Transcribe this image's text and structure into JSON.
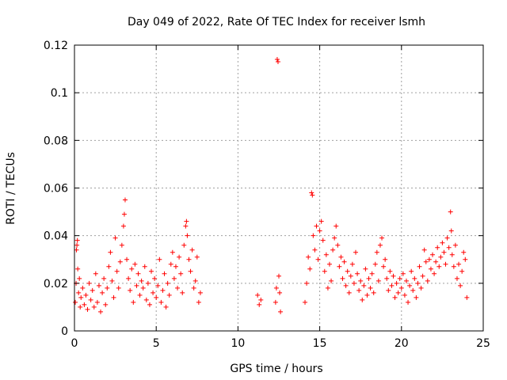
{
  "chart_data": {
    "type": "scatter",
    "title": "Day 049 of 2022, Rate Of TEC Index for receiver lsmh",
    "xlabel": "GPS time / hours",
    "ylabel": "ROTI / TECUs",
    "xlim": [
      0,
      25
    ],
    "ylim": [
      0,
      0.12
    ],
    "xticks": [
      0,
      5,
      10,
      15,
      20,
      25
    ],
    "xtick_labels": [
      "0",
      "5",
      "10",
      "15",
      "20",
      "25"
    ],
    "yticks": [
      0,
      0.02,
      0.04,
      0.06,
      0.08,
      0.1,
      0.12
    ],
    "ytick_labels": [
      "0",
      "0.02",
      "0.04",
      "0.06",
      "0.08",
      "0.1",
      "0.12"
    ],
    "grid": true,
    "marker": "+",
    "series": [
      {
        "name": "ROTI",
        "color": "#ff0000",
        "points": [
          [
            0.05,
            0.012
          ],
          [
            0.1,
            0.02
          ],
          [
            0.12,
            0.034
          ],
          [
            0.15,
            0.036
          ],
          [
            0.18,
            0.038
          ],
          [
            0.2,
            0.026
          ],
          [
            0.25,
            0.016
          ],
          [
            0.3,
            0.022
          ],
          [
            0.35,
            0.01
          ],
          [
            0.4,
            0.014
          ],
          [
            0.5,
            0.018
          ],
          [
            0.6,
            0.011
          ],
          [
            0.7,
            0.015
          ],
          [
            0.8,
            0.009
          ],
          [
            0.9,
            0.02
          ],
          [
            1.0,
            0.013
          ],
          [
            1.1,
            0.017
          ],
          [
            1.2,
            0.01
          ],
          [
            1.3,
            0.024
          ],
          [
            1.4,
            0.012
          ],
          [
            1.5,
            0.019
          ],
          [
            1.6,
            0.008
          ],
          [
            1.7,
            0.016
          ],
          [
            1.8,
            0.022
          ],
          [
            1.9,
            0.011
          ],
          [
            2.0,
            0.018
          ],
          [
            2.1,
            0.027
          ],
          [
            2.2,
            0.033
          ],
          [
            2.3,
            0.021
          ],
          [
            2.4,
            0.014
          ],
          [
            2.5,
            0.039
          ],
          [
            2.6,
            0.025
          ],
          [
            2.7,
            0.018
          ],
          [
            2.8,
            0.029
          ],
          [
            2.9,
            0.036
          ],
          [
            3.0,
            0.044
          ],
          [
            3.05,
            0.049
          ],
          [
            3.1,
            0.055
          ],
          [
            3.2,
            0.03
          ],
          [
            3.3,
            0.022
          ],
          [
            3.4,
            0.017
          ],
          [
            3.5,
            0.026
          ],
          [
            3.6,
            0.012
          ],
          [
            3.7,
            0.028
          ],
          [
            3.8,
            0.019
          ],
          [
            3.9,
            0.024
          ],
          [
            4.0,
            0.015
          ],
          [
            4.1,
            0.021
          ],
          [
            4.2,
            0.018
          ],
          [
            4.3,
            0.027
          ],
          [
            4.4,
            0.013
          ],
          [
            4.5,
            0.02
          ],
          [
            4.6,
            0.011
          ],
          [
            4.7,
            0.025
          ],
          [
            4.8,
            0.016
          ],
          [
            4.9,
            0.022
          ],
          [
            5.0,
            0.014
          ],
          [
            5.1,
            0.019
          ],
          [
            5.2,
            0.03
          ],
          [
            5.3,
            0.012
          ],
          [
            5.4,
            0.017
          ],
          [
            5.5,
            0.024
          ],
          [
            5.6,
            0.01
          ],
          [
            5.7,
            0.02
          ],
          [
            5.8,
            0.015
          ],
          [
            5.9,
            0.028
          ],
          [
            6.0,
            0.033
          ],
          [
            6.1,
            0.022
          ],
          [
            6.2,
            0.027
          ],
          [
            6.3,
            0.018
          ],
          [
            6.4,
            0.031
          ],
          [
            6.5,
            0.024
          ],
          [
            6.6,
            0.016
          ],
          [
            6.7,
            0.036
          ],
          [
            6.8,
            0.044
          ],
          [
            6.85,
            0.046
          ],
          [
            6.9,
            0.04
          ],
          [
            7.0,
            0.03
          ],
          [
            7.1,
            0.025
          ],
          [
            7.2,
            0.034
          ],
          [
            7.3,
            0.018
          ],
          [
            7.4,
            0.021
          ],
          [
            7.5,
            0.031
          ],
          [
            7.6,
            0.012
          ],
          [
            7.7,
            0.016
          ],
          [
            11.2,
            0.015
          ],
          [
            11.3,
            0.011
          ],
          [
            11.4,
            0.013
          ],
          [
            12.3,
            0.012
          ],
          [
            12.35,
            0.018
          ],
          [
            12.4,
            0.114
          ],
          [
            12.45,
            0.113
          ],
          [
            12.5,
            0.023
          ],
          [
            12.55,
            0.016
          ],
          [
            12.6,
            0.008
          ],
          [
            14.1,
            0.012
          ],
          [
            14.2,
            0.02
          ],
          [
            14.3,
            0.031
          ],
          [
            14.4,
            0.026
          ],
          [
            14.5,
            0.058
          ],
          [
            14.55,
            0.057
          ],
          [
            14.6,
            0.04
          ],
          [
            14.7,
            0.034
          ],
          [
            14.8,
            0.044
          ],
          [
            14.9,
            0.03
          ],
          [
            15.0,
            0.042
          ],
          [
            15.1,
            0.046
          ],
          [
            15.2,
            0.038
          ],
          [
            15.3,
            0.025
          ],
          [
            15.4,
            0.032
          ],
          [
            15.5,
            0.018
          ],
          [
            15.6,
            0.028
          ],
          [
            15.7,
            0.021
          ],
          [
            15.8,
            0.034
          ],
          [
            15.9,
            0.039
          ],
          [
            16.0,
            0.044
          ],
          [
            16.1,
            0.036
          ],
          [
            16.2,
            0.027
          ],
          [
            16.3,
            0.031
          ],
          [
            16.4,
            0.022
          ],
          [
            16.5,
            0.029
          ],
          [
            16.6,
            0.019
          ],
          [
            16.7,
            0.025
          ],
          [
            16.8,
            0.016
          ],
          [
            16.9,
            0.023
          ],
          [
            17.0,
            0.028
          ],
          [
            17.1,
            0.02
          ],
          [
            17.2,
            0.033
          ],
          [
            17.3,
            0.024
          ],
          [
            17.4,
            0.017
          ],
          [
            17.5,
            0.021
          ],
          [
            17.6,
            0.013
          ],
          [
            17.7,
            0.019
          ],
          [
            17.8,
            0.026
          ],
          [
            17.9,
            0.015
          ],
          [
            18.0,
            0.022
          ],
          [
            18.1,
            0.018
          ],
          [
            18.2,
            0.024
          ],
          [
            18.3,
            0.016
          ],
          [
            18.4,
            0.028
          ],
          [
            18.5,
            0.033
          ],
          [
            18.6,
            0.021
          ],
          [
            18.7,
            0.036
          ],
          [
            18.8,
            0.039
          ],
          [
            18.9,
            0.027
          ],
          [
            19.0,
            0.03
          ],
          [
            19.1,
            0.022
          ],
          [
            19.2,
            0.017
          ],
          [
            19.3,
            0.025
          ],
          [
            19.4,
            0.019
          ],
          [
            19.5,
            0.023
          ],
          [
            19.6,
            0.014
          ],
          [
            19.7,
            0.02
          ],
          [
            19.8,
            0.016
          ],
          [
            19.9,
            0.022
          ],
          [
            20.0,
            0.018
          ],
          [
            20.1,
            0.024
          ],
          [
            20.2,
            0.015
          ],
          [
            20.3,
            0.021
          ],
          [
            20.4,
            0.012
          ],
          [
            20.5,
            0.019
          ],
          [
            20.6,
            0.025
          ],
          [
            20.7,
            0.017
          ],
          [
            20.8,
            0.022
          ],
          [
            20.9,
            0.014
          ],
          [
            21.0,
            0.02
          ],
          [
            21.1,
            0.027
          ],
          [
            21.2,
            0.018
          ],
          [
            21.3,
            0.023
          ],
          [
            21.4,
            0.034
          ],
          [
            21.5,
            0.029
          ],
          [
            21.6,
            0.021
          ],
          [
            21.7,
            0.03
          ],
          [
            21.8,
            0.026
          ],
          [
            21.9,
            0.032
          ],
          [
            22.0,
            0.024
          ],
          [
            22.1,
            0.029
          ],
          [
            22.2,
            0.035
          ],
          [
            22.3,
            0.027
          ],
          [
            22.4,
            0.031
          ],
          [
            22.5,
            0.037
          ],
          [
            22.6,
            0.033
          ],
          [
            22.7,
            0.028
          ],
          [
            22.8,
            0.039
          ],
          [
            22.9,
            0.035
          ],
          [
            23.0,
            0.05
          ],
          [
            23.05,
            0.042
          ],
          [
            23.1,
            0.032
          ],
          [
            23.2,
            0.027
          ],
          [
            23.3,
            0.036
          ],
          [
            23.4,
            0.022
          ],
          [
            23.5,
            0.028
          ],
          [
            23.6,
            0.019
          ],
          [
            23.7,
            0.025
          ],
          [
            23.8,
            0.033
          ],
          [
            23.9,
            0.03
          ],
          [
            24.0,
            0.014
          ]
        ]
      }
    ]
  }
}
